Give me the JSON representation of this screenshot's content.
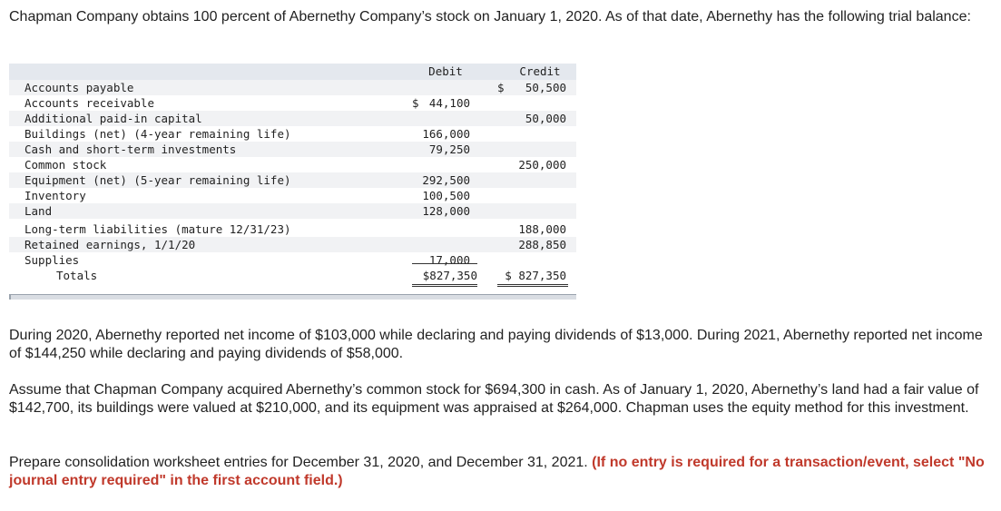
{
  "intro": "Chapman Company obtains 100 percent of Abernethy Company’s stock on January 1, 2020. As of that date, Abernethy has the following trial balance:",
  "trial_balance": {
    "debit_header": "Debit",
    "credit_header": "Credit",
    "rows": [
      {
        "account": "Accounts payable",
        "debit_sign": "",
        "debit": "",
        "credit_sign": "$",
        "credit": "50,500"
      },
      {
        "account": "Accounts receivable",
        "debit_sign": "$",
        "debit": "44,100",
        "credit_sign": "",
        "credit": ""
      },
      {
        "account": "Additional paid-in capital",
        "debit_sign": "",
        "debit": "",
        "credit_sign": "",
        "credit": "50,000"
      },
      {
        "account": "Buildings (net) (4-year remaining life)",
        "debit_sign": "",
        "debit": "166,000",
        "credit_sign": "",
        "credit": ""
      },
      {
        "account": "Cash and short-term investments",
        "debit_sign": "",
        "debit": "79,250",
        "credit_sign": "",
        "credit": ""
      },
      {
        "account": "Common stock",
        "debit_sign": "",
        "debit": "",
        "credit_sign": "",
        "credit": "250,000"
      },
      {
        "account": "Equipment (net) (5-year remaining life)",
        "debit_sign": "",
        "debit": "292,500",
        "credit_sign": "",
        "credit": ""
      },
      {
        "account": "Inventory",
        "debit_sign": "",
        "debit": "100,500",
        "credit_sign": "",
        "credit": ""
      },
      {
        "account": "Land",
        "debit_sign": "",
        "debit": "128,000",
        "credit_sign": "",
        "credit": ""
      },
      {
        "account": "Long-term liabilities (mature 12/31/23)",
        "debit_sign": "",
        "debit": "",
        "credit_sign": "",
        "credit": "188,000"
      },
      {
        "account": "Retained earnings, 1/1/20",
        "debit_sign": "",
        "debit": "",
        "credit_sign": "",
        "credit": "288,850"
      },
      {
        "account": "Supplies",
        "debit_sign": "",
        "debit": "17,000",
        "credit_sign": "",
        "credit": ""
      }
    ],
    "totals_label": "Totals",
    "total_debit": "$827,350",
    "total_credit": "$ 827,350"
  },
  "paragraph_income": "During 2020, Abernethy reported net income of $103,000 while declaring and paying dividends of $13,000. During 2021, Abernethy reported net income of $144,250 while declaring and paying dividends of $58,000.",
  "paragraph_acquisition": "Assume that Chapman Company acquired Abernethy’s common stock for $694,300 in cash. As of January 1, 2020, Abernethy’s land had a fair value of $142,700, its buildings were valued at $210,000, and its equipment was appraised at $264,000. Chapman uses the equity method for this investment.",
  "paragraph_prepare": "Prepare consolidation worksheet entries for December 31, 2020, and December 31, 2021.",
  "instruction_note": "(If no entry is required for a transaction/event, select \"No journal entry required\" in the first account field.)",
  "colors": {
    "instruction": "#c0392b",
    "header_band": "#e4e8ee",
    "row_shade": "#f1f2f4"
  }
}
